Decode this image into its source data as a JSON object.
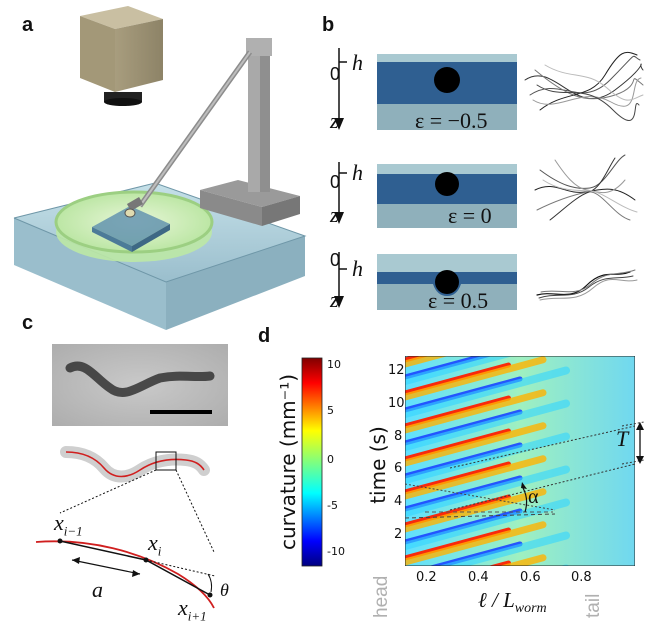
{
  "panels": {
    "a": {
      "letter": "a"
    },
    "b": {
      "letter": "b",
      "rows": [
        {
          "zero": "0",
          "h": "h",
          "z": "z",
          "eps": "ε = −0.5"
        },
        {
          "zero": "0",
          "h": "h",
          "z": "z",
          "eps": "ε = 0"
        },
        {
          "zero": "0",
          "h": "h",
          "z": "z",
          "eps": "ε = 0.5"
        }
      ]
    },
    "c": {
      "letter": "c",
      "labels": {
        "xim1": "x",
        "xim1_sub": "i−1",
        "xi": "x",
        "xi_sub": "i",
        "xip1": "x",
        "xip1_sub": "i+1",
        "a": "a",
        "theta": "θ"
      }
    },
    "d": {
      "letter": "d",
      "colorbar": {
        "title": "curvature  (mm⁻¹)",
        "ticks": [
          "10",
          "5",
          "0",
          "-5",
          "-10"
        ]
      },
      "yaxis": {
        "title": "time (s)",
        "ticks": [
          "12",
          "10",
          "8",
          "6",
          "4",
          "2"
        ]
      },
      "xaxis": {
        "title": "ℓ / L",
        "title_sub": "worm",
        "ticks": [
          "0.2",
          "0.4",
          "0.6",
          "0.8"
        ]
      },
      "annot": {
        "T": "T",
        "alpha": "α",
        "head": "head",
        "tail": "tail"
      }
    }
  },
  "colors": {
    "water_dark": "#2f5f91",
    "water_light": "#8fb0bb",
    "top_band": "#a9c9d1"
  }
}
